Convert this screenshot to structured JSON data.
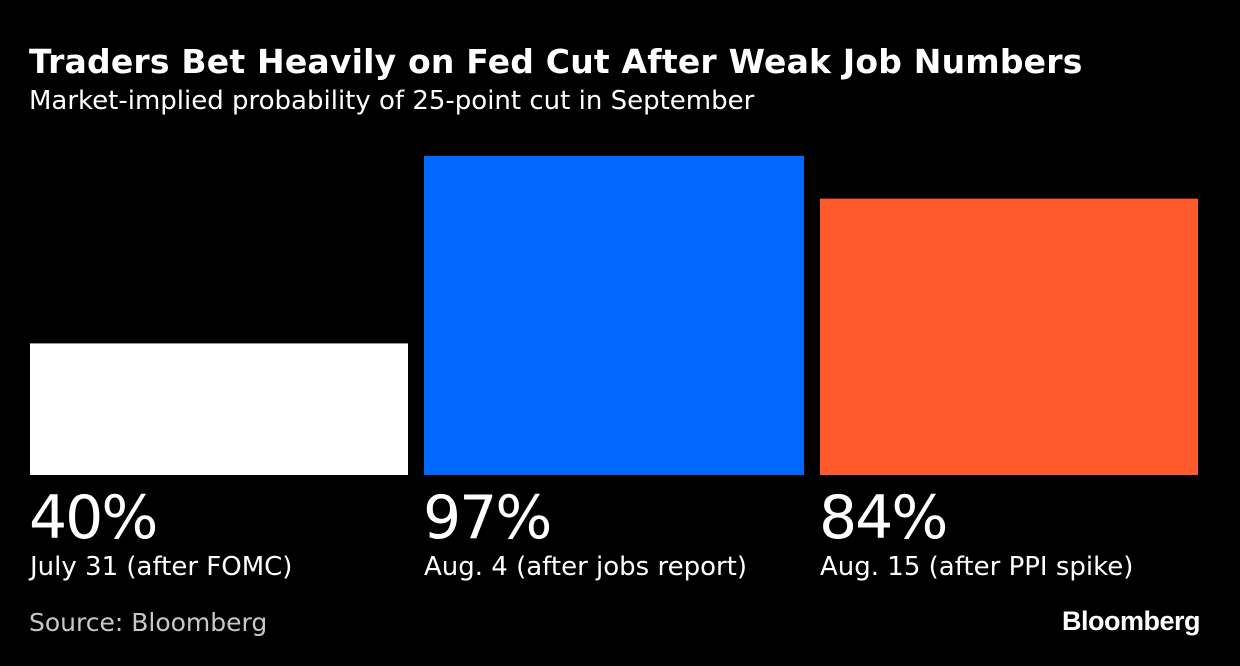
{
  "chart_data": {
    "type": "bar",
    "title": "Traders Bet Heavily on Fed Cut After Weak Job Numbers",
    "subtitle": "Market-implied probability of 25-point cut in September",
    "categories": [
      "July 31 (after FOMC)",
      "Aug. 4 (after jobs report)",
      "Aug. 15 (after PPI spike)"
    ],
    "values": [
      40,
      97,
      84
    ],
    "value_labels": [
      "40%",
      "97%",
      "84%"
    ],
    "colors": [
      "#ffffff",
      "#0068ff",
      "#fe5a2b"
    ],
    "ylim": [
      0,
      100
    ],
    "grid": false,
    "xlabel": "",
    "ylabel": ""
  },
  "source": "Source: Bloomberg",
  "logo": "Bloomberg",
  "background": "#000000"
}
